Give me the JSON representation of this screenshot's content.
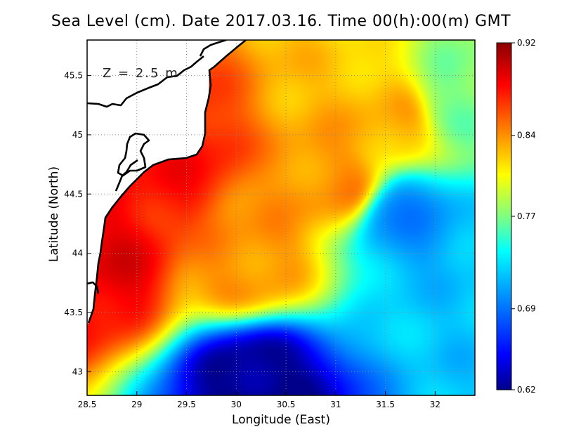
{
  "chart_data": {
    "type": "heatmap",
    "title": "Sea Level (cm). Date 2017.03.16. Time 00(h):00(m) GMT",
    "xlabel": "Longitude (East)",
    "ylabel": "Latitude (North)",
    "annotation": "Z = 2.5 m",
    "xlim": [
      28.5,
      32.4
    ],
    "ylim": [
      42.8,
      45.8
    ],
    "x_ticks": [
      "28.5",
      "29",
      "29.5",
      "30",
      "30.5",
      "31",
      "31.5",
      "32"
    ],
    "y_ticks": [
      "43",
      "43.5",
      "44",
      "44.5",
      "45",
      "45.5"
    ],
    "colorbar": {
      "ticks": [
        "0.92",
        "0.84",
        "0.77",
        "0.69",
        "0.62"
      ],
      "values": [
        0.92,
        0.84,
        0.77,
        0.69,
        0.62
      ],
      "range": [
        0.62,
        0.92
      ]
    },
    "colormap": [
      "#00008b",
      "#0000ff",
      "#0080ff",
      "#00ffff",
      "#80ff80",
      "#ffff00",
      "#ff8000",
      "#ff0000",
      "#8b0000"
    ],
    "grid": true,
    "field_features": [
      {
        "lon": 28.65,
        "lat": 43.9,
        "value": 0.89,
        "desc": "coastal maximum"
      },
      {
        "lon": 29.3,
        "lat": 44.75,
        "value": 0.88
      },
      {
        "lon": 30.1,
        "lat": 43.95,
        "value": 0.84
      },
      {
        "lon": 31.0,
        "lat": 44.6,
        "value": 0.84
      },
      {
        "lon": 31.5,
        "lat": 45.1,
        "value": 0.83
      },
      {
        "lon": 30.2,
        "lat": 42.9,
        "value": 0.62,
        "desc": "minimum"
      },
      {
        "lon": 31.7,
        "lat": 44.3,
        "value": 0.7
      },
      {
        "lon": 32.3,
        "lat": 43.5,
        "value": 0.72
      },
      {
        "lon": 32.3,
        "lat": 45.3,
        "value": 0.77
      }
    ]
  }
}
